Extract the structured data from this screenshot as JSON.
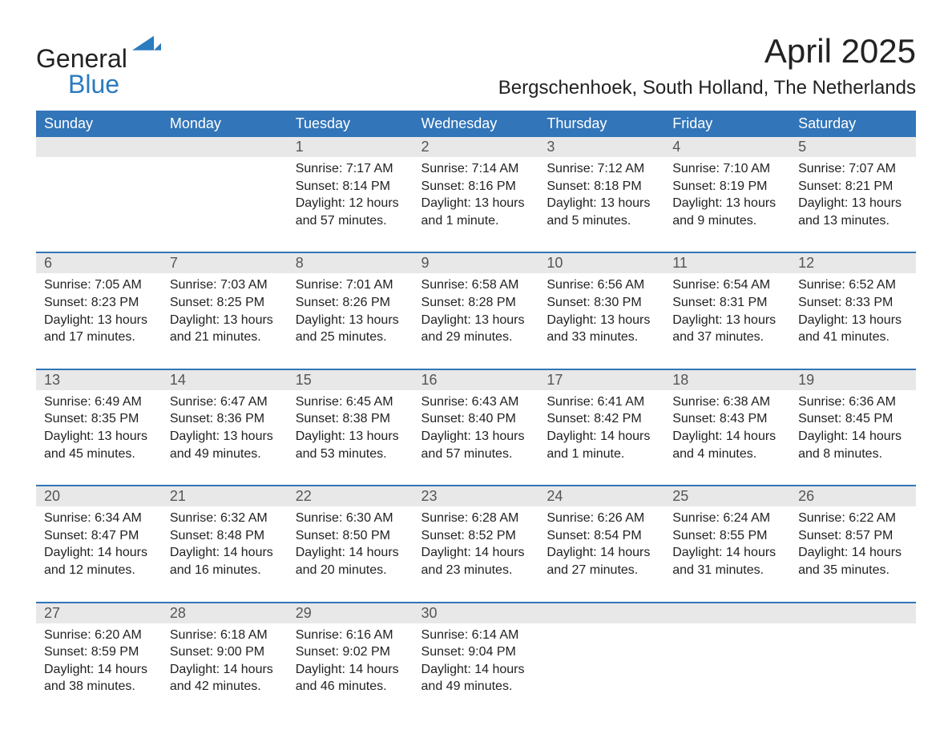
{
  "logo": {
    "text1": "General",
    "text2": "Blue"
  },
  "title": "April 2025",
  "location": "Bergschenhoek, South Holland, The Netherlands",
  "colors": {
    "header_bg": "#3275b8",
    "header_text": "#ffffff",
    "daynum_bg": "#e8e8e8",
    "rule": "#3275b8",
    "logo_blue": "#2b7bbf"
  },
  "day_headers": [
    "Sunday",
    "Monday",
    "Tuesday",
    "Wednesday",
    "Thursday",
    "Friday",
    "Saturday"
  ],
  "weeks": [
    {
      "days": [
        null,
        null,
        {
          "n": "1",
          "sr": "Sunrise: 7:17 AM",
          "ss": "Sunset: 8:14 PM",
          "d1": "Daylight: 12 hours",
          "d2": "and 57 minutes."
        },
        {
          "n": "2",
          "sr": "Sunrise: 7:14 AM",
          "ss": "Sunset: 8:16 PM",
          "d1": "Daylight: 13 hours",
          "d2": "and 1 minute."
        },
        {
          "n": "3",
          "sr": "Sunrise: 7:12 AM",
          "ss": "Sunset: 8:18 PM",
          "d1": "Daylight: 13 hours",
          "d2": "and 5 minutes."
        },
        {
          "n": "4",
          "sr": "Sunrise: 7:10 AM",
          "ss": "Sunset: 8:19 PM",
          "d1": "Daylight: 13 hours",
          "d2": "and 9 minutes."
        },
        {
          "n": "5",
          "sr": "Sunrise: 7:07 AM",
          "ss": "Sunset: 8:21 PM",
          "d1": "Daylight: 13 hours",
          "d2": "and 13 minutes."
        }
      ]
    },
    {
      "days": [
        {
          "n": "6",
          "sr": "Sunrise: 7:05 AM",
          "ss": "Sunset: 8:23 PM",
          "d1": "Daylight: 13 hours",
          "d2": "and 17 minutes."
        },
        {
          "n": "7",
          "sr": "Sunrise: 7:03 AM",
          "ss": "Sunset: 8:25 PM",
          "d1": "Daylight: 13 hours",
          "d2": "and 21 minutes."
        },
        {
          "n": "8",
          "sr": "Sunrise: 7:01 AM",
          "ss": "Sunset: 8:26 PM",
          "d1": "Daylight: 13 hours",
          "d2": "and 25 minutes."
        },
        {
          "n": "9",
          "sr": "Sunrise: 6:58 AM",
          "ss": "Sunset: 8:28 PM",
          "d1": "Daylight: 13 hours",
          "d2": "and 29 minutes."
        },
        {
          "n": "10",
          "sr": "Sunrise: 6:56 AM",
          "ss": "Sunset: 8:30 PM",
          "d1": "Daylight: 13 hours",
          "d2": "and 33 minutes."
        },
        {
          "n": "11",
          "sr": "Sunrise: 6:54 AM",
          "ss": "Sunset: 8:31 PM",
          "d1": "Daylight: 13 hours",
          "d2": "and 37 minutes."
        },
        {
          "n": "12",
          "sr": "Sunrise: 6:52 AM",
          "ss": "Sunset: 8:33 PM",
          "d1": "Daylight: 13 hours",
          "d2": "and 41 minutes."
        }
      ]
    },
    {
      "days": [
        {
          "n": "13",
          "sr": "Sunrise: 6:49 AM",
          "ss": "Sunset: 8:35 PM",
          "d1": "Daylight: 13 hours",
          "d2": "and 45 minutes."
        },
        {
          "n": "14",
          "sr": "Sunrise: 6:47 AM",
          "ss": "Sunset: 8:36 PM",
          "d1": "Daylight: 13 hours",
          "d2": "and 49 minutes."
        },
        {
          "n": "15",
          "sr": "Sunrise: 6:45 AM",
          "ss": "Sunset: 8:38 PM",
          "d1": "Daylight: 13 hours",
          "d2": "and 53 minutes."
        },
        {
          "n": "16",
          "sr": "Sunrise: 6:43 AM",
          "ss": "Sunset: 8:40 PM",
          "d1": "Daylight: 13 hours",
          "d2": "and 57 minutes."
        },
        {
          "n": "17",
          "sr": "Sunrise: 6:41 AM",
          "ss": "Sunset: 8:42 PM",
          "d1": "Daylight: 14 hours",
          "d2": "and 1 minute."
        },
        {
          "n": "18",
          "sr": "Sunrise: 6:38 AM",
          "ss": "Sunset: 8:43 PM",
          "d1": "Daylight: 14 hours",
          "d2": "and 4 minutes."
        },
        {
          "n": "19",
          "sr": "Sunrise: 6:36 AM",
          "ss": "Sunset: 8:45 PM",
          "d1": "Daylight: 14 hours",
          "d2": "and 8 minutes."
        }
      ]
    },
    {
      "days": [
        {
          "n": "20",
          "sr": "Sunrise: 6:34 AM",
          "ss": "Sunset: 8:47 PM",
          "d1": "Daylight: 14 hours",
          "d2": "and 12 minutes."
        },
        {
          "n": "21",
          "sr": "Sunrise: 6:32 AM",
          "ss": "Sunset: 8:48 PM",
          "d1": "Daylight: 14 hours",
          "d2": "and 16 minutes."
        },
        {
          "n": "22",
          "sr": "Sunrise: 6:30 AM",
          "ss": "Sunset: 8:50 PM",
          "d1": "Daylight: 14 hours",
          "d2": "and 20 minutes."
        },
        {
          "n": "23",
          "sr": "Sunrise: 6:28 AM",
          "ss": "Sunset: 8:52 PM",
          "d1": "Daylight: 14 hours",
          "d2": "and 23 minutes."
        },
        {
          "n": "24",
          "sr": "Sunrise: 6:26 AM",
          "ss": "Sunset: 8:54 PM",
          "d1": "Daylight: 14 hours",
          "d2": "and 27 minutes."
        },
        {
          "n": "25",
          "sr": "Sunrise: 6:24 AM",
          "ss": "Sunset: 8:55 PM",
          "d1": "Daylight: 14 hours",
          "d2": "and 31 minutes."
        },
        {
          "n": "26",
          "sr": "Sunrise: 6:22 AM",
          "ss": "Sunset: 8:57 PM",
          "d1": "Daylight: 14 hours",
          "d2": "and 35 minutes."
        }
      ]
    },
    {
      "days": [
        {
          "n": "27",
          "sr": "Sunrise: 6:20 AM",
          "ss": "Sunset: 8:59 PM",
          "d1": "Daylight: 14 hours",
          "d2": "and 38 minutes."
        },
        {
          "n": "28",
          "sr": "Sunrise: 6:18 AM",
          "ss": "Sunset: 9:00 PM",
          "d1": "Daylight: 14 hours",
          "d2": "and 42 minutes."
        },
        {
          "n": "29",
          "sr": "Sunrise: 6:16 AM",
          "ss": "Sunset: 9:02 PM",
          "d1": "Daylight: 14 hours",
          "d2": "and 46 minutes."
        },
        {
          "n": "30",
          "sr": "Sunrise: 6:14 AM",
          "ss": "Sunset: 9:04 PM",
          "d1": "Daylight: 14 hours",
          "d2": "and 49 minutes."
        },
        null,
        null,
        null
      ]
    }
  ]
}
